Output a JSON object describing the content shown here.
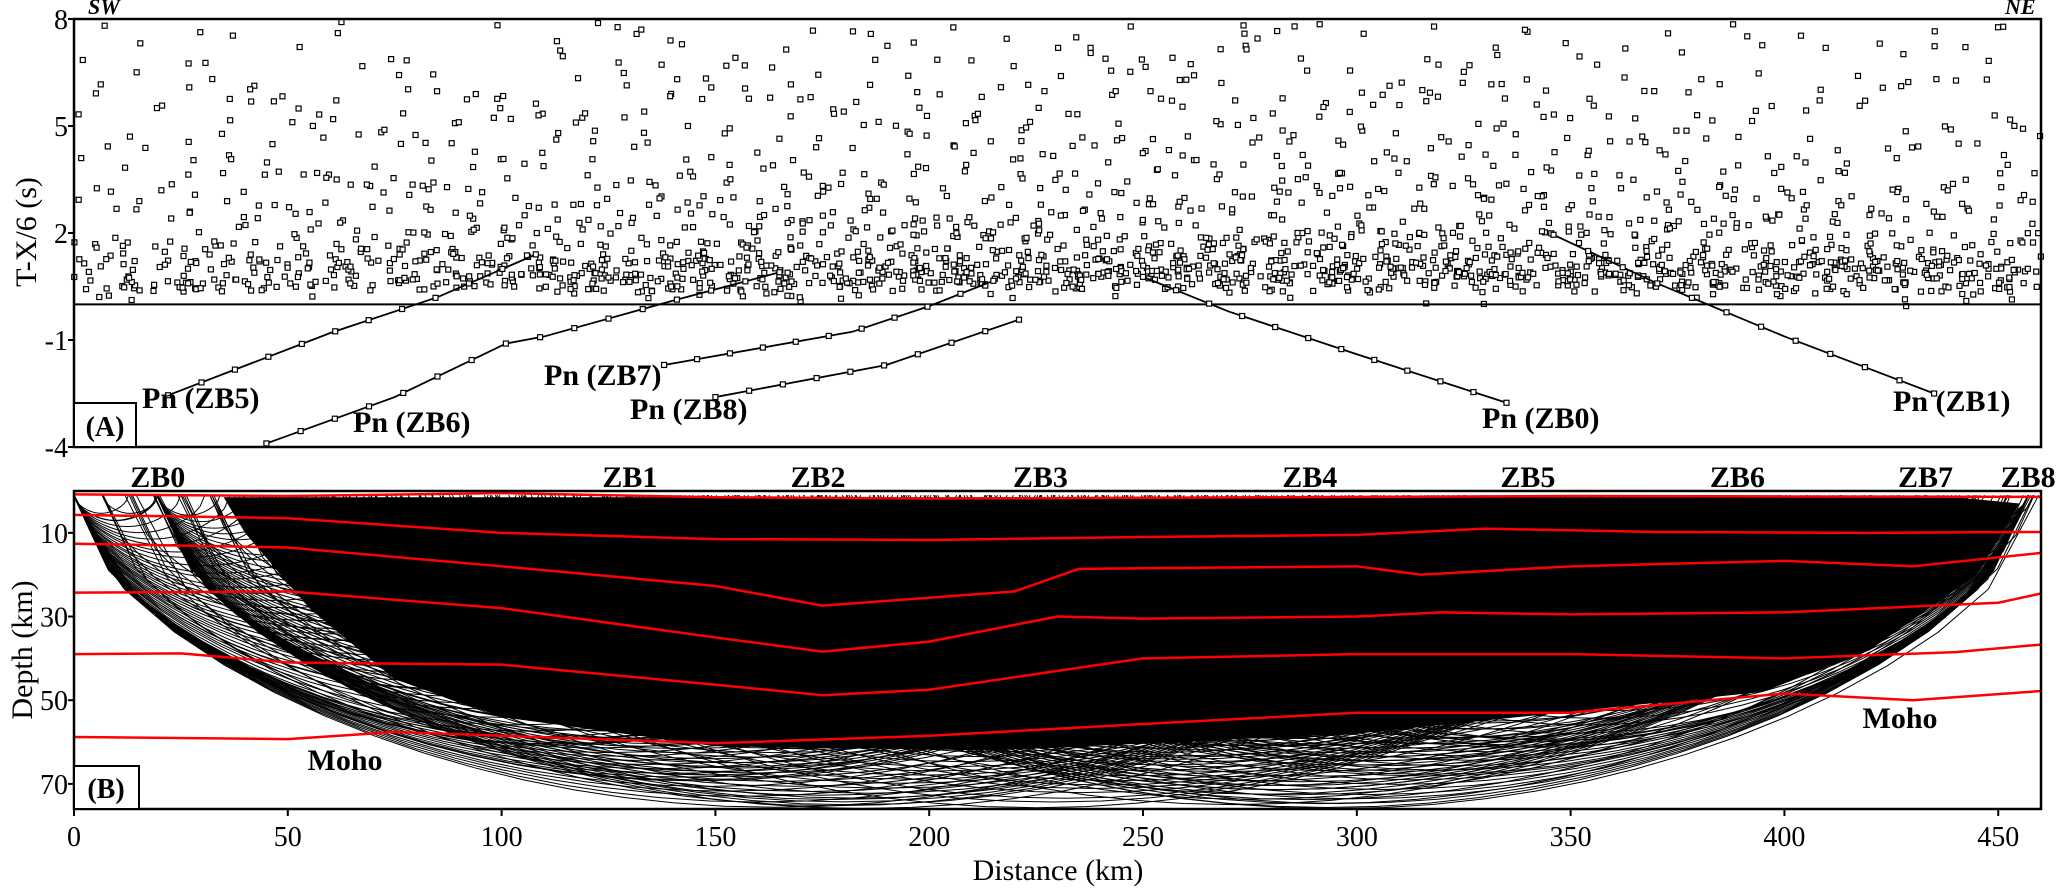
{
  "chart_data": [
    {
      "type": "scatter",
      "panel_label": "(A)",
      "ylabel": "T-X/6 (s)",
      "xlim": [
        0,
        460
      ],
      "ylim": [
        -4,
        8
      ],
      "yticks": [
        8,
        5,
        2,
        -1,
        -4
      ],
      "direction_left": "SW",
      "direction_right": "NE",
      "reference_line_y": 0,
      "pn_curves": [
        {
          "name": "Pn (ZB5)",
          "points": [
            [
              22,
              -2.55
            ],
            [
              60,
              -0.8
            ],
            [
              85,
              0.2
            ],
            [
              108,
              1.4
            ]
          ]
        },
        {
          "name": "Pn (ZB6)",
          "points": [
            [
              45,
              -3.9
            ],
            [
              75,
              -2.6
            ],
            [
              101,
              -1.1
            ],
            [
              110,
              -0.9
            ],
            [
              140,
              0.1
            ],
            [
              165,
              0.9
            ]
          ]
        },
        {
          "name": "Pn (ZB7)",
          "points": [
            [
              138,
              -1.7
            ],
            [
              182,
              -0.77
            ],
            [
              200,
              -0.05
            ],
            [
              215,
              0.66
            ]
          ]
        },
        {
          "name": "Pn (ZB8)",
          "points": [
            [
              150,
              -2.6
            ],
            [
              190,
              -1.7
            ],
            [
              221,
              -0.43
            ]
          ]
        },
        {
          "name": "Pn (ZB0)",
          "points": [
            [
              250,
              0.77
            ],
            [
              270,
              -0.2
            ],
            [
              300,
              -1.4
            ],
            [
              335,
              -2.76
            ]
          ]
        },
        {
          "name": "Pn (ZB1)",
          "points": [
            [
              346,
              1.95
            ],
            [
              370,
              0.6
            ],
            [
              400,
              -0.9
            ],
            [
              435,
              -2.5
            ]
          ]
        }
      ]
    },
    {
      "type": "line",
      "panel_label": "(B)",
      "xlabel": "Distance (km)",
      "ylabel": "Depth (km)",
      "xlim": [
        0,
        460
      ],
      "ylim": [
        0,
        76
      ],
      "xticks": [
        0,
        50,
        100,
        150,
        200,
        250,
        300,
        350,
        400,
        450
      ],
      "yticks": [
        10,
        30,
        50,
        70
      ],
      "stations": [
        {
          "name": "ZB0",
          "km": 19.6
        },
        {
          "name": "ZB1",
          "km": 130
        },
        {
          "name": "ZB2",
          "km": 174
        },
        {
          "name": "ZB3",
          "km": 226
        },
        {
          "name": "ZB4",
          "km": 289
        },
        {
          "name": "ZB5",
          "km": 340
        },
        {
          "name": "ZB6",
          "km": 389
        },
        {
          "name": "ZB7",
          "km": 433
        },
        {
          "name": "ZB8",
          "km": 457
        }
      ],
      "interface_color": "#ff0000",
      "interfaces": [
        {
          "name": "surface",
          "points": [
            [
              0,
              0.8
            ],
            [
              50,
              1.2
            ],
            [
              100,
              0.5
            ],
            [
              150,
              1.5
            ],
            [
              200,
              1.8
            ],
            [
              250,
              1.6
            ],
            [
              300,
              1.4
            ],
            [
              350,
              1.2
            ],
            [
              400,
              1.3
            ],
            [
              460,
              1.4
            ]
          ]
        },
        {
          "name": "interface-1",
          "points": [
            [
              0,
              5.7
            ],
            [
              50,
              6.5
            ],
            [
              100,
              10
            ],
            [
              150,
              11.5
            ],
            [
              200,
              11.7
            ],
            [
              250,
              11
            ],
            [
              300,
              10.5
            ],
            [
              330,
              9
            ],
            [
              370,
              9.8
            ],
            [
              420,
              10
            ],
            [
              460,
              9.8
            ]
          ]
        },
        {
          "name": "interface-2",
          "points": [
            [
              0,
              12.6
            ],
            [
              50,
              13.5
            ],
            [
              100,
              18
            ],
            [
              150,
              22.7
            ],
            [
              175,
              27.4
            ],
            [
              220,
              24
            ],
            [
              235,
              18.6
            ],
            [
              300,
              18
            ],
            [
              315,
              20
            ],
            [
              350,
              18
            ],
            [
              400,
              16.7
            ],
            [
              430,
              18
            ],
            [
              460,
              14.8
            ]
          ]
        },
        {
          "name": "interface-3",
          "points": [
            [
              0,
              24.3
            ],
            [
              50,
              24
            ],
            [
              100,
              28
            ],
            [
              150,
              35
            ],
            [
              175,
              38.4
            ],
            [
              200,
              36
            ],
            [
              230,
              30
            ],
            [
              250,
              30.5
            ],
            [
              300,
              30
            ],
            [
              320,
              29
            ],
            [
              350,
              29.5
            ],
            [
              400,
              29
            ],
            [
              450,
              26.7
            ],
            [
              460,
              24.5
            ]
          ]
        },
        {
          "name": "interface-4",
          "points": [
            [
              0,
              39
            ],
            [
              25,
              38.8
            ],
            [
              50,
              41
            ],
            [
              100,
              41.5
            ],
            [
              150,
              46.3
            ],
            [
              175,
              48.8
            ],
            [
              200,
              47.5
            ],
            [
              230,
              43
            ],
            [
              250,
              40
            ],
            [
              300,
              39
            ],
            [
              350,
              39
            ],
            [
              400,
              40
            ],
            [
              440,
              38.5
            ],
            [
              460,
              36.7
            ]
          ]
        },
        {
          "name": "moho",
          "points": [
            [
              0,
              58.8
            ],
            [
              50,
              59.3
            ],
            [
              75,
              57.6
            ],
            [
              100,
              58.5
            ],
            [
              150,
              60.3
            ],
            [
              200,
              58.5
            ],
            [
              250,
              55.7
            ],
            [
              300,
              53
            ],
            [
              350,
              53
            ],
            [
              400,
              48.4
            ],
            [
              430,
              50
            ],
            [
              460,
              47.8
            ]
          ]
        }
      ],
      "annotations": [
        "Moho",
        "Moho"
      ]
    }
  ]
}
